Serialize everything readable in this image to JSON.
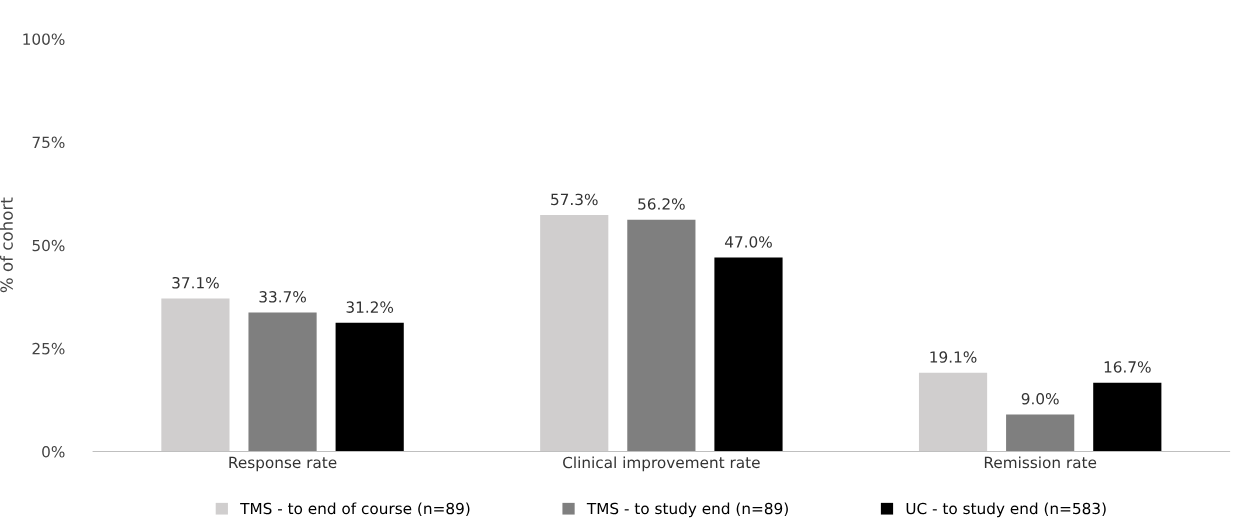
{
  "chart_data": {
    "type": "bar",
    "ylabel": "% of cohort",
    "categories": [
      "Response rate",
      "Clinical improvement rate",
      "Remission rate"
    ],
    "series": [
      {
        "name": "TMS - to end of course (n=89)",
        "color": "#d0cece",
        "values": [
          37.1,
          57.3,
          19.1
        ],
        "value_labels": [
          "37.1%",
          "57.3%",
          "19.1%"
        ]
      },
      {
        "name": "TMS - to study end (n=89)",
        "color": "#7f7f7f",
        "values": [
          33.7,
          56.2,
          9.0
        ],
        "value_labels": [
          "33.7%",
          "56.2%",
          "9.0%"
        ]
      },
      {
        "name": "UC - to study end (n=583)",
        "color": "#000000",
        "values": [
          31.2,
          47.0,
          16.7
        ],
        "value_labels": [
          "31.2%",
          "47.0%",
          "16.7%"
        ]
      }
    ],
    "ylim": [
      0,
      100
    ],
    "yticks": [
      {
        "value": 0,
        "label": "0%"
      },
      {
        "value": 25,
        "label": "25%"
      },
      {
        "value": 50,
        "label": "50%"
      },
      {
        "value": 75,
        "label": "75%"
      },
      {
        "value": 100,
        "label": "100%"
      }
    ],
    "grid": false,
    "legend": "bottom"
  }
}
